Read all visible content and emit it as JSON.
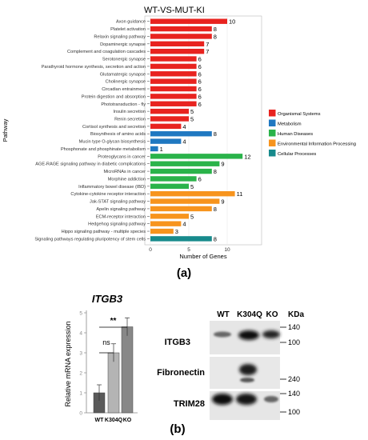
{
  "panel_a_label": "(a)",
  "panel_b_label": "(b)",
  "chart_data": [
    {
      "type": "bar",
      "title": "WT-VS-MUT-KI",
      "xlabel": "Number of Genes",
      "ylabel": "Pathway",
      "xlim": [
        0,
        13
      ],
      "xticks": [
        0,
        5,
        10
      ],
      "orientation": "horizontal",
      "legend_position": "right",
      "legend": [
        {
          "name": "Organismal Systems",
          "color": "#e8231f"
        },
        {
          "name": "Metabolism",
          "color": "#1f78c1"
        },
        {
          "name": "Human Diseases",
          "color": "#2ab34a"
        },
        {
          "name": "Environmental Information Processing",
          "color": "#f7941d"
        },
        {
          "name": "Cellular Processes",
          "color": "#178a8c"
        }
      ],
      "categories": [
        "Axon guidance",
        "Platelet activation",
        "Relaxin signaling pathway",
        "Dopaminergic synapse",
        "Complement and coagulation cascades",
        "Serotonergic synapse",
        "Parathyroid hormone synthesis, secretion and action",
        "Glutamatergic synapse",
        "Cholinergic synapse",
        "Circadian entrainment",
        "Protein digestion and absorption",
        "Phototransduction - fly",
        "Insulin secretion",
        "Renin secretion",
        "Cortisol synthesis and secretion",
        "Biosynthesis of amino acids",
        "Mucin type O-glycan biosynthesis",
        "Phosphonate and phosphinate metabolism",
        "Proteoglycans in cancer",
        "AGE-RAGE signaling pathway in diabetic complications",
        "MicroRNAs in cancer",
        "Morphine addiction",
        "Inflammatory bowel disease (IBD)",
        "Cytokine-cytokine receptor interaction",
        "Jak-STAT signaling pathway",
        "Apelin signaling pathway",
        "ECM-receptor interaction",
        "Hedgehog signaling pathway",
        "Hippo signaling pathway - multiple species",
        "Signaling pathways regulating pluripotency of stem cells"
      ],
      "values": [
        10,
        8,
        8,
        7,
        7,
        6,
        6,
        6,
        6,
        6,
        6,
        6,
        5,
        5,
        4,
        8,
        4,
        1,
        12,
        9,
        8,
        6,
        5,
        11,
        9,
        8,
        5,
        4,
        3,
        8
      ],
      "groups": [
        0,
        0,
        0,
        0,
        0,
        0,
        0,
        0,
        0,
        0,
        0,
        0,
        0,
        0,
        0,
        1,
        1,
        1,
        2,
        2,
        2,
        2,
        2,
        3,
        3,
        3,
        3,
        3,
        3,
        4
      ]
    },
    {
      "type": "bar",
      "title": "ITGB3",
      "ylabel": "Relative mRNA expression",
      "ylim": [
        0,
        5
      ],
      "categories": [
        "WT",
        "K304Q",
        "KO"
      ],
      "values": [
        1.0,
        3.0,
        4.3
      ],
      "errors": [
        0.4,
        0.45,
        0.45
      ],
      "colors": [
        "#5a5a5a",
        "#b4b4b4",
        "#888888"
      ],
      "annotations": [
        {
          "text": "ns",
          "between": [
            "WT",
            "K304Q"
          ]
        },
        {
          "text": "**",
          "between": [
            "WT",
            "KO"
          ]
        }
      ]
    }
  ],
  "western": {
    "lanes": [
      "WT",
      "K304Q",
      "KO"
    ],
    "kda_label": "KDa",
    "blots": [
      {
        "name": "ITGB3",
        "markers": [
          "140",
          "100"
        ]
      },
      {
        "name": "Fibronectin",
        "markers": [
          "240"
        ]
      },
      {
        "name": "TRIM28",
        "markers": [
          "140",
          "100"
        ]
      }
    ]
  }
}
